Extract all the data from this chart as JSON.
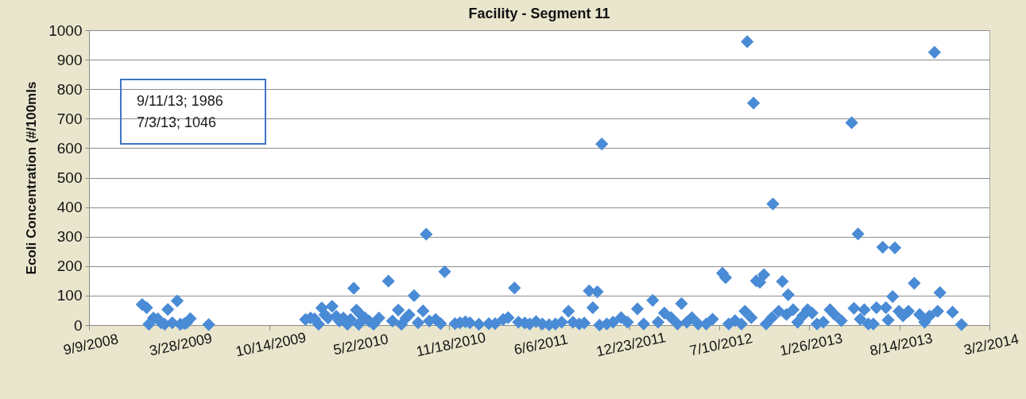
{
  "chart_data": {
    "type": "scatter",
    "title": "Facility - Segment 11",
    "ylabel": "Ecoli Concentration (#/100mls",
    "annotations": [
      "9/11/13; 1986",
      "7/3/13; 1046"
    ],
    "x": [
      "2009-01-05",
      "2009-01-15",
      "2009-01-20",
      "2009-01-30",
      "2009-02-09",
      "2009-02-16",
      "2009-02-24",
      "2009-03-03",
      "2009-03-13",
      "2009-03-24",
      "2009-03-31",
      "2009-04-09",
      "2009-04-14",
      "2009-04-22",
      "2009-06-02",
      "2010-01-03",
      "2010-01-14",
      "2010-01-23",
      "2010-02-01",
      "2010-02-08",
      "2010-02-15",
      "2010-02-22",
      "2010-03-03",
      "2010-03-12",
      "2010-03-19",
      "2010-03-28",
      "2010-04-06",
      "2010-04-13",
      "2010-04-20",
      "2010-04-26",
      "2010-05-01",
      "2010-05-06",
      "2010-05-15",
      "2010-05-24",
      "2010-06-03",
      "2010-06-15",
      "2010-07-06",
      "2010-07-15",
      "2010-07-28",
      "2010-08-04",
      "2010-08-14",
      "2010-08-21",
      "2010-09-01",
      "2010-09-10",
      "2010-09-21",
      "2010-09-28",
      "2010-10-05",
      "2010-10-19",
      "2010-10-30",
      "2010-11-08",
      "2010-12-01",
      "2010-12-12",
      "2010-12-24",
      "2011-01-03",
      "2011-01-23",
      "2011-02-14",
      "2011-02-28",
      "2011-03-18",
      "2011-03-29",
      "2011-04-12",
      "2011-04-21",
      "2011-05-05",
      "2011-05-16",
      "2011-05-30",
      "2011-06-13",
      "2011-06-28",
      "2011-07-12",
      "2011-07-26",
      "2011-08-10",
      "2011-08-20",
      "2011-09-03",
      "2011-09-14",
      "2011-09-25",
      "2011-10-03",
      "2011-10-13",
      "2011-10-18",
      "2011-10-23",
      "2011-11-03",
      "2011-11-17",
      "2011-12-05",
      "2011-12-19",
      "2012-01-10",
      "2012-01-24",
      "2012-02-13",
      "2012-02-25",
      "2012-03-10",
      "2012-03-25",
      "2012-04-08",
      "2012-04-17",
      "2012-04-29",
      "2012-05-10",
      "2012-05-24",
      "2012-06-11",
      "2012-06-25",
      "2012-07-17",
      "2012-07-24",
      "2012-07-31",
      "2012-08-14",
      "2012-08-28",
      "2012-09-05",
      "2012-09-10",
      "2012-09-19",
      "2012-09-24",
      "2012-09-30",
      "2012-10-08",
      "2012-10-17",
      "2012-10-22",
      "2012-11-04",
      "2012-11-06",
      "2012-11-19",
      "2012-11-27",
      "2012-12-06",
      "2012-12-10",
      "2012-12-21",
      "2012-12-31",
      "2013-01-11",
      "2013-01-22",
      "2013-02-01",
      "2013-02-12",
      "2013-02-26",
      "2013-03-13",
      "2013-03-23",
      "2013-04-07",
      "2013-04-30",
      "2013-05-05",
      "2013-05-14",
      "2013-05-19",
      "2013-05-28",
      "2013-06-06",
      "2013-06-17",
      "2013-06-24",
      "2013-07-08",
      "2013-07-15",
      "2013-07-20",
      "2013-07-30",
      "2013-08-04",
      "2013-08-13",
      "2013-08-22",
      "2013-09-03",
      "2013-09-16",
      "2013-09-28",
      "2013-10-09",
      "2013-10-20",
      "2013-10-31",
      "2013-11-07",
      "2013-11-12",
      "2013-12-10",
      "2013-12-30"
    ],
    "series": [
      {
        "color": "#4a8bd6",
        "values": [
          70,
          59,
          3,
          24,
          21,
          8,
          3,
          53,
          8,
          82,
          3,
          5,
          8,
          22,
          2,
          19,
          24,
          21,
          3,
          58,
          35,
          24,
          64,
          30,
          14,
          24,
          3,
          19,
          125,
          51,
          3,
          35,
          24,
          14,
          3,
          24,
          149,
          14,
          51,
          3,
          24,
          35,
          100,
          8,
          48,
          308,
          14,
          19,
          5,
          181,
          5,
          8,
          11,
          8,
          3,
          5,
          5,
          19,
          25,
          126,
          10,
          7,
          4,
          12,
          4,
          1,
          4,
          10,
          47,
          10,
          4,
          7,
          116,
          59,
          113,
          0,
          614,
          4,
          10,
          25,
          10,
          55,
          4,
          84,
          10,
          41,
          25,
          4,
          73,
          10,
          25,
          4,
          4,
          20,
          176,
          161,
          4,
          15,
          4,
          47,
          961,
          25,
          753,
          150,
          145,
          171,
          4,
          25,
          411,
          47,
          148,
          36,
          103,
          52,
          10,
          31,
          52,
          41,
          4,
          10,
          52,
          36,
          15,
          686,
          57,
          309,
          20,
          52,
          4,
          4,
          59,
          264,
          59,
          17,
          97,
          262,
          47,
          31,
          47,
          142,
          36,
          10,
          31,
          925,
          47,
          110,
          44,
          2
        ]
      }
    ],
    "xlim": [
      "2008-09-09",
      "2014-03-02"
    ],
    "xticks": [
      {
        "value": "2008-09-09",
        "label": "9/9/2008"
      },
      {
        "value": "2009-03-28",
        "label": "3/28/2009"
      },
      {
        "value": "2009-10-14",
        "label": "10/14/2009"
      },
      {
        "value": "2010-05-02",
        "label": "5/2/2010"
      },
      {
        "value": "2010-11-18",
        "label": "11/18/2010"
      },
      {
        "value": "2011-06-06",
        "label": "6/6/2011"
      },
      {
        "value": "2011-12-23",
        "label": "12/23/2011"
      },
      {
        "value": "2012-07-10",
        "label": "7/10/2012"
      },
      {
        "value": "2013-01-26",
        "label": "1/26/2013"
      },
      {
        "value": "2013-08-14",
        "label": "8/14/2013"
      },
      {
        "value": "2014-03-02",
        "label": "3/2/2014"
      }
    ],
    "ylim": [
      0,
      1000
    ],
    "yticks": [
      0,
      100,
      200,
      300,
      400,
      500,
      600,
      700,
      800,
      900,
      1000
    ],
    "grid": "y",
    "marker": "diamond"
  }
}
